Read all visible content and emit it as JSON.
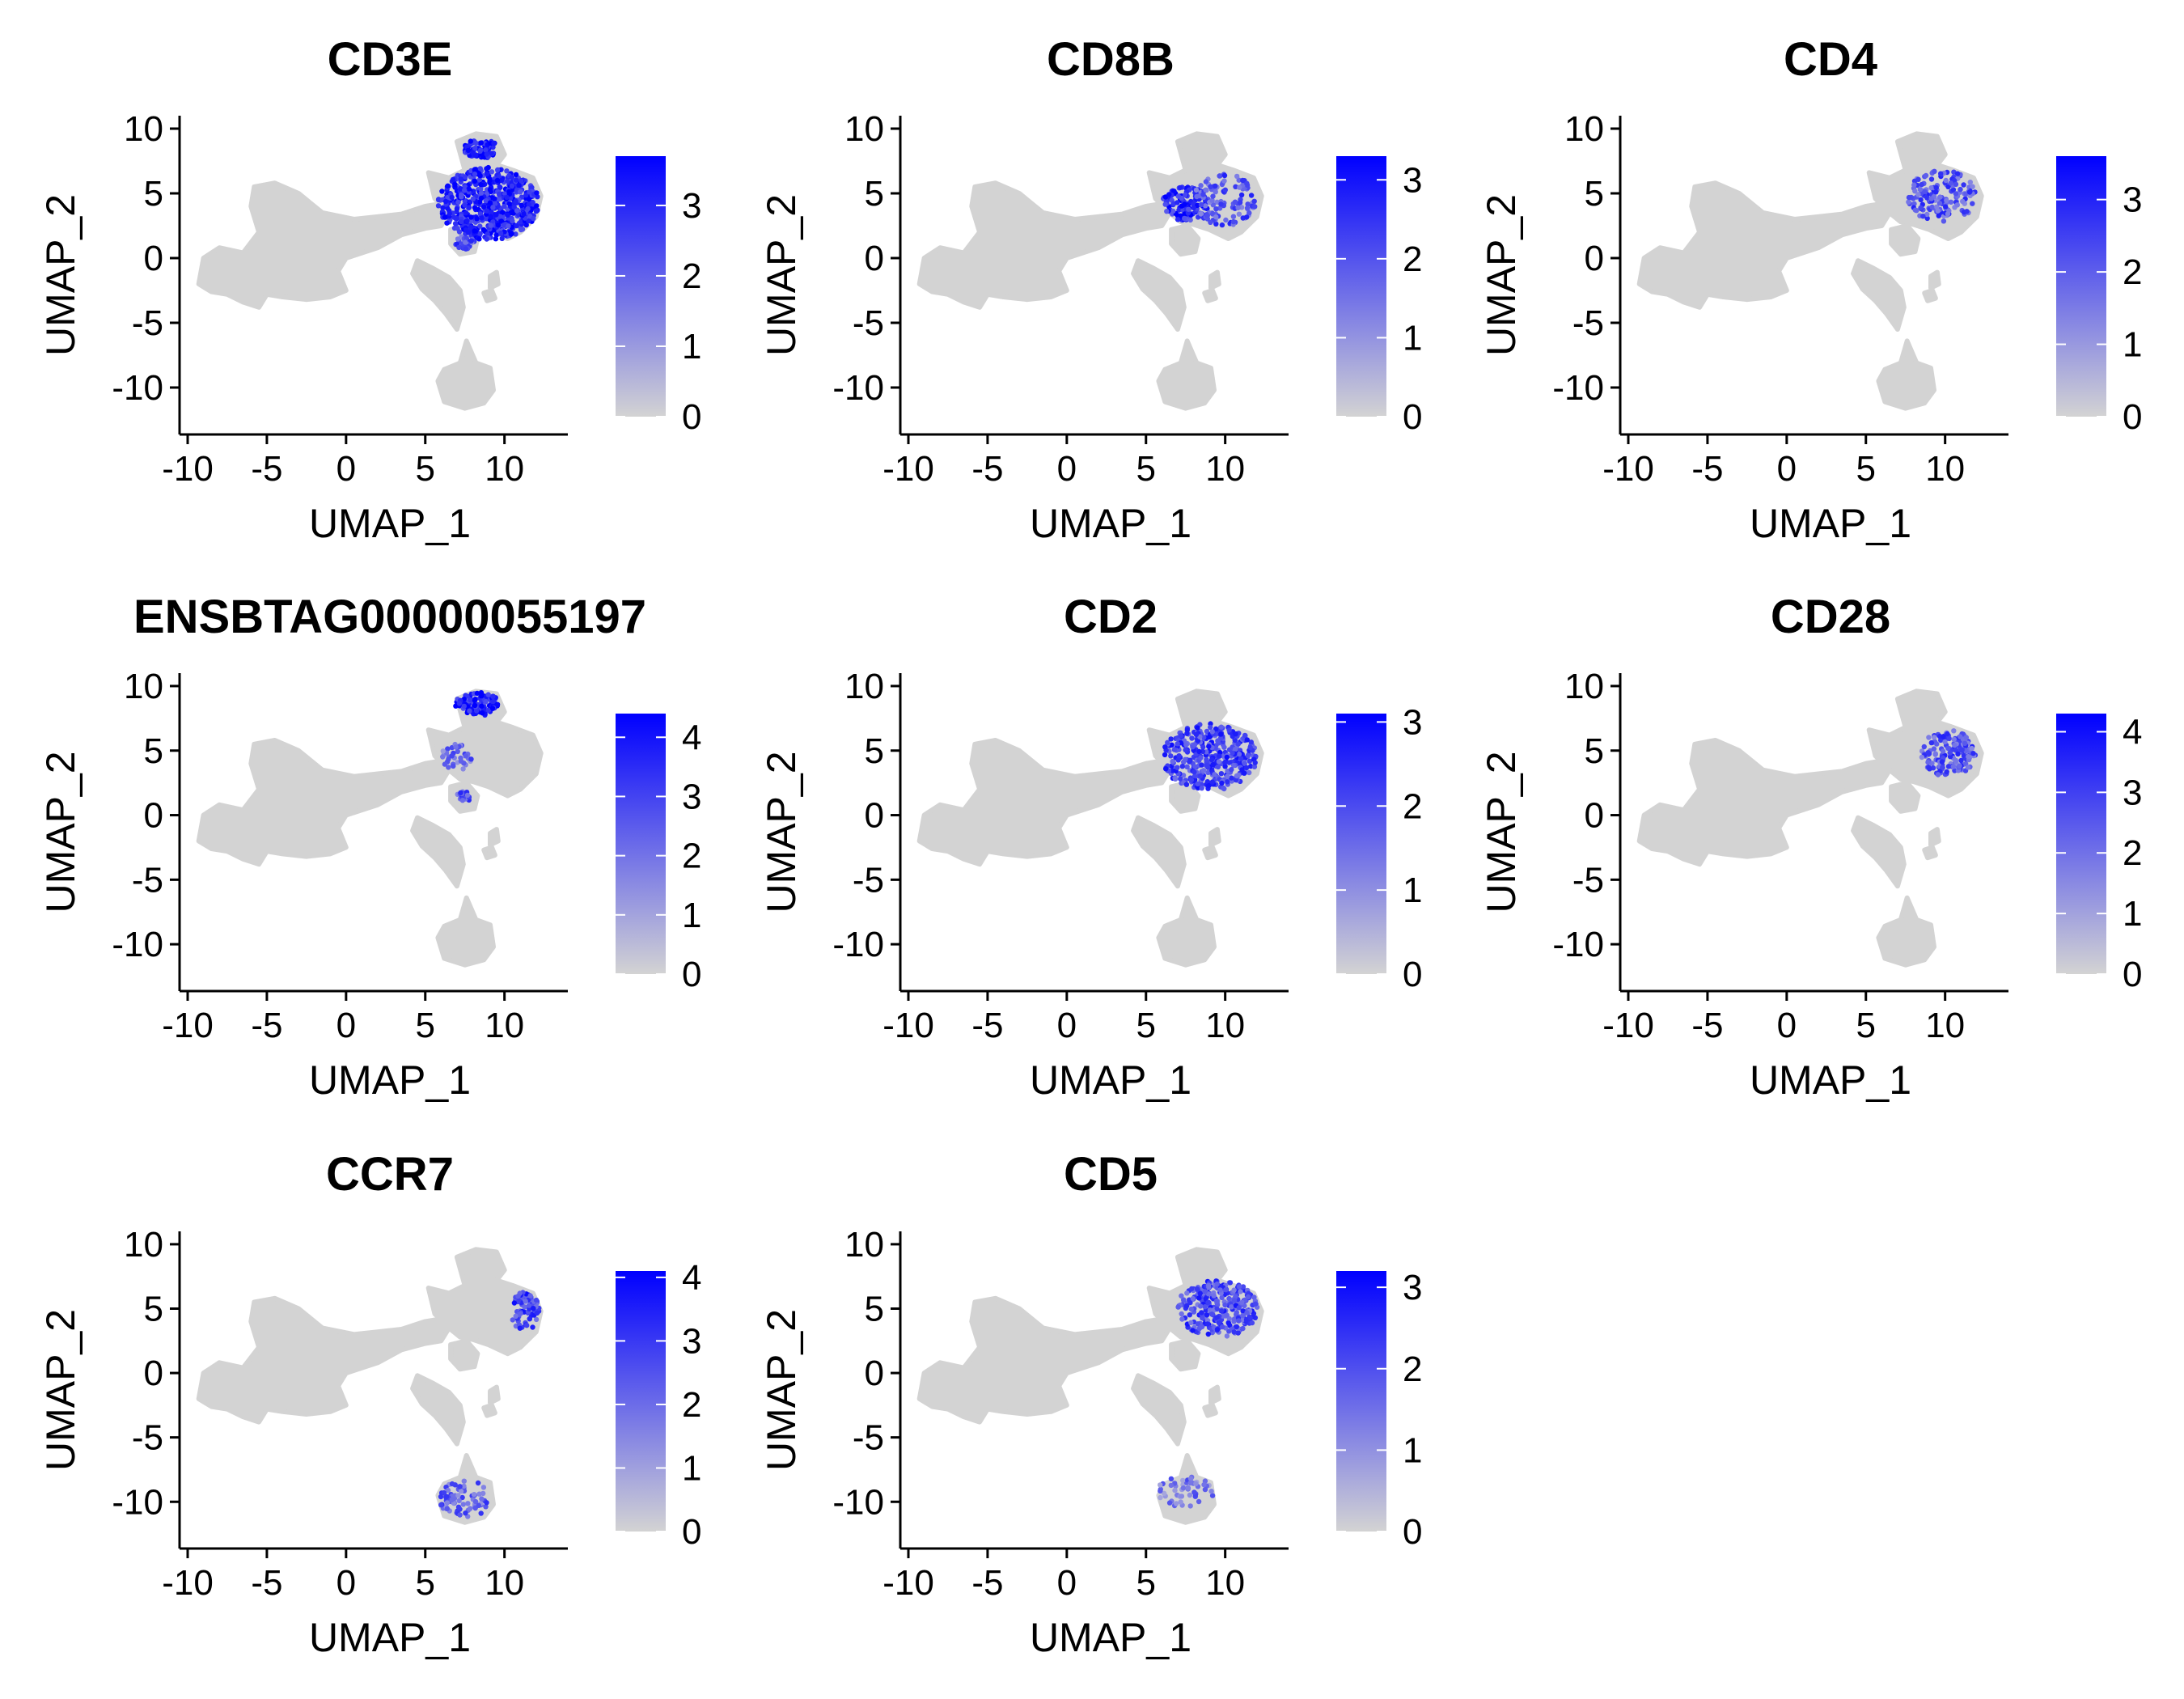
{
  "chart_data": [
    {
      "type": "scatter",
      "title": "CD3E",
      "xlabel": "UMAP_1",
      "ylabel": "UMAP_2",
      "xlim": [
        -10,
        14
      ],
      "ylim": [
        -13,
        11
      ],
      "xticks": [
        -10,
        -5,
        0,
        5,
        10
      ],
      "yticks": [
        -10,
        -5,
        0,
        5,
        10
      ],
      "colorbar": {
        "min": 0,
        "max": 3.7,
        "ticks": [
          0,
          1,
          2,
          3
        ]
      },
      "expression_clusters": [
        {
          "x": 9.0,
          "y": 4.2,
          "rx": 3.2,
          "ry": 2.8,
          "level": 0.85,
          "density": 1.0
        },
        {
          "x": 8.5,
          "y": 8.5,
          "rx": 1.1,
          "ry": 0.8,
          "level": 0.9,
          "density": 1.0
        },
        {
          "x": 7.5,
          "y": 1.2,
          "rx": 0.6,
          "ry": 0.5,
          "level": 0.6,
          "density": 0.5
        }
      ]
    },
    {
      "type": "scatter",
      "title": "CD8B",
      "xlabel": "UMAP_1",
      "ylabel": "UMAP_2",
      "xlim": [
        -10,
        14
      ],
      "ylim": [
        -13,
        11
      ],
      "xticks": [
        -10,
        -5,
        0,
        5,
        10
      ],
      "yticks": [
        -10,
        -5,
        0,
        5,
        10
      ],
      "colorbar": {
        "min": 0,
        "max": 3.3,
        "ticks": [
          0,
          1,
          2,
          3
        ]
      },
      "expression_clusters": [
        {
          "x": 7.5,
          "y": 4.2,
          "rx": 1.5,
          "ry": 1.3,
          "level": 0.8,
          "density": 0.8
        },
        {
          "x": 10.0,
          "y": 4.5,
          "rx": 2.0,
          "ry": 2.0,
          "level": 0.6,
          "density": 0.35
        }
      ]
    },
    {
      "type": "scatter",
      "title": "CD4",
      "xlabel": "UMAP_1",
      "ylabel": "UMAP_2",
      "xlim": [
        -10,
        14
      ],
      "ylim": [
        -13,
        11
      ],
      "xticks": [
        -10,
        -5,
        0,
        5,
        10
      ],
      "yticks": [
        -10,
        -5,
        0,
        5,
        10
      ],
      "colorbar": {
        "min": 0,
        "max": 3.6,
        "ticks": [
          0,
          1,
          2,
          3
        ]
      },
      "expression_clusters": [
        {
          "x": 9.8,
          "y": 4.8,
          "rx": 2.2,
          "ry": 2.0,
          "level": 0.6,
          "density": 0.45
        }
      ]
    },
    {
      "type": "scatter",
      "title": "ENSBTAG00000055197",
      "xlabel": "UMAP_1",
      "ylabel": "UMAP_2",
      "xlim": [
        -10,
        14
      ],
      "ylim": [
        -13,
        11
      ],
      "xticks": [
        -10,
        -5,
        0,
        5,
        10
      ],
      "yticks": [
        -10,
        -5,
        0,
        5,
        10
      ],
      "colorbar": {
        "min": 0,
        "max": 4.4,
        "ticks": [
          0,
          1,
          2,
          3,
          4
        ]
      },
      "expression_clusters": [
        {
          "x": 8.3,
          "y": 8.6,
          "rx": 1.4,
          "ry": 0.9,
          "level": 0.85,
          "density": 1.0
        },
        {
          "x": 7.0,
          "y": 4.5,
          "rx": 1.0,
          "ry": 1.0,
          "level": 0.5,
          "density": 0.25
        },
        {
          "x": 7.5,
          "y": 1.5,
          "rx": 0.5,
          "ry": 0.4,
          "level": 0.6,
          "density": 0.5
        }
      ]
    },
    {
      "type": "scatter",
      "title": "CD2",
      "xlabel": "UMAP_1",
      "ylabel": "UMAP_2",
      "xlim": [
        -10,
        14
      ],
      "ylim": [
        -13,
        11
      ],
      "xticks": [
        -10,
        -5,
        0,
        5,
        10
      ],
      "yticks": [
        -10,
        -5,
        0,
        5,
        10
      ],
      "colorbar": {
        "min": 0,
        "max": 3.1,
        "ticks": [
          0,
          1,
          2,
          3
        ]
      },
      "expression_clusters": [
        {
          "x": 9.0,
          "y": 4.5,
          "rx": 3.0,
          "ry": 2.6,
          "level": 0.7,
          "density": 0.7
        }
      ]
    },
    {
      "type": "scatter",
      "title": "CD28",
      "xlabel": "UMAP_1",
      "ylabel": "UMAP_2",
      "xlim": [
        -10,
        14
      ],
      "ylim": [
        -13,
        11
      ],
      "xticks": [
        -10,
        -5,
        0,
        5,
        10
      ],
      "yticks": [
        -10,
        -5,
        0,
        5,
        10
      ],
      "colorbar": {
        "min": 0,
        "max": 4.3,
        "ticks": [
          0,
          1,
          2,
          3,
          4
        ]
      },
      "expression_clusters": [
        {
          "x": 10.2,
          "y": 4.8,
          "rx": 1.8,
          "ry": 1.8,
          "level": 0.6,
          "density": 0.65
        }
      ]
    },
    {
      "type": "scatter",
      "title": "CCR7",
      "xlabel": "UMAP_1",
      "ylabel": "UMAP_2",
      "xlim": [
        -10,
        14
      ],
      "ylim": [
        -13,
        11
      ],
      "xticks": [
        -10,
        -5,
        0,
        5,
        10
      ],
      "yticks": [
        -10,
        -5,
        0,
        5,
        10
      ],
      "colorbar": {
        "min": 0,
        "max": 4.1,
        "ticks": [
          0,
          1,
          2,
          3,
          4
        ]
      },
      "expression_clusters": [
        {
          "x": 11.3,
          "y": 4.8,
          "rx": 0.9,
          "ry": 1.5,
          "level": 0.7,
          "density": 0.6
        },
        {
          "x": 7.5,
          "y": -9.8,
          "rx": 1.6,
          "ry": 1.5,
          "level": 0.55,
          "density": 0.35
        }
      ]
    },
    {
      "type": "scatter",
      "title": "CD5",
      "xlabel": "UMAP_1",
      "ylabel": "UMAP_2",
      "xlim": [
        -10,
        14
      ],
      "ylim": [
        -13,
        11
      ],
      "xticks": [
        -10,
        -5,
        0,
        5,
        10
      ],
      "yticks": [
        -10,
        -5,
        0,
        5,
        10
      ],
      "colorbar": {
        "min": 0,
        "max": 3.2,
        "ticks": [
          0,
          1,
          2,
          3
        ]
      },
      "expression_clusters": [
        {
          "x": 9.5,
          "y": 5.0,
          "rx": 2.6,
          "ry": 2.2,
          "level": 0.65,
          "density": 0.7
        },
        {
          "x": 7.5,
          "y": -9.2,
          "rx": 1.8,
          "ry": 1.2,
          "level": 0.45,
          "density": 0.25
        }
      ]
    }
  ],
  "colors": {
    "low": "#d3d3d3",
    "high": "#0000ff",
    "axis": "#000000",
    "background": "#ffffff"
  }
}
